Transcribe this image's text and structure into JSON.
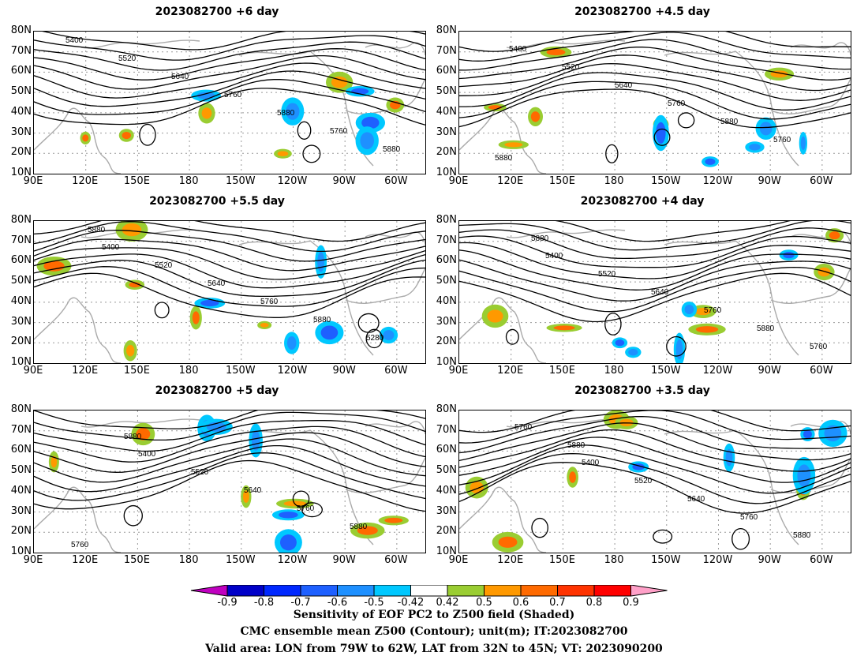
{
  "panels": [
    {
      "title": "2023082700  +6  day",
      "contour_labels": [
        "5400",
        "5520",
        "5640",
        "5760",
        "5880",
        "5760",
        "5880"
      ]
    },
    {
      "title": "2023082700  +4.5  day",
      "contour_labels": [
        "5400",
        "5520",
        "5640",
        "5760",
        "5880",
        "5760",
        "5880"
      ]
    },
    {
      "title": "2023082700  +5.5  day",
      "contour_labels": [
        "5400",
        "5520",
        "5640",
        "5760",
        "5880",
        "5280",
        "5880"
      ]
    },
    {
      "title": "2023082700  +4  day",
      "contour_labels": [
        "5400",
        "5520",
        "5640",
        "5760",
        "5880",
        "5760",
        "5880"
      ]
    },
    {
      "title": "2023082700  +5  day",
      "contour_labels": [
        "5400",
        "5520",
        "5640",
        "5760",
        "5880",
        "5760",
        "5880"
      ]
    },
    {
      "title": "2023082700  +3.5  day",
      "contour_labels": [
        "5400",
        "5520",
        "5640",
        "5760",
        "5880",
        "5760",
        "5880"
      ]
    }
  ],
  "lat_labels": [
    "80N",
    "70N",
    "60N",
    "50N",
    "40N",
    "30N",
    "20N",
    "10N"
  ],
  "lon_labels": [
    "90E",
    "120E",
    "150E",
    "180",
    "150W",
    "120W",
    "90W",
    "60W"
  ],
  "colorbar": {
    "labels": [
      "-0.9",
      "-0.8",
      "-0.7",
      "-0.6",
      "-0.5",
      "-0.42",
      "0.42",
      "0.5",
      "0.6",
      "0.7",
      "0.8",
      "0.9"
    ],
    "colors": [
      "#c000c0",
      "#0000c8",
      "#0028ff",
      "#1e60ff",
      "#1e90ff",
      "#00c8ff",
      "#ffffff",
      "#9acd32",
      "#ff9900",
      "#ff6a00",
      "#ff3300",
      "#ff0000",
      "#ffa0c8"
    ]
  },
  "caption": {
    "line1": "Sensitivity of EOF PC2 to Z500 field (Shaded)",
    "line2": "CMC ensemble mean Z500 (Contour); unit(m); IT:2023082700",
    "line3": "Valid area: LON from 79W to 62W, LAT from 32N to 45N; VT: 2023090200"
  }
}
